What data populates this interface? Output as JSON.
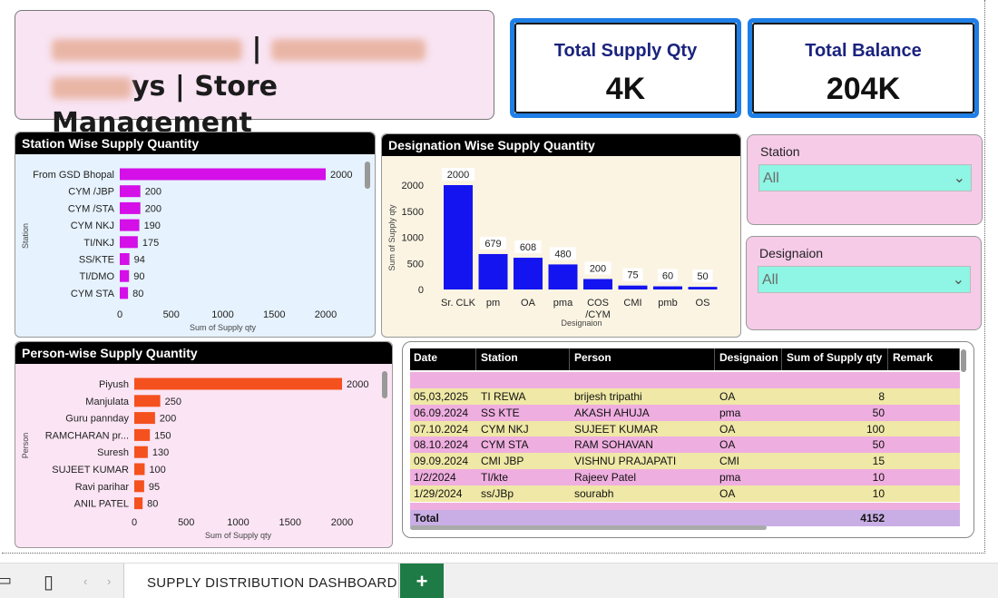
{
  "title": {
    "line1_visible": "|",
    "line2_visible": "ys | Store Management"
  },
  "kpis": {
    "supply": {
      "label": "Total Supply Qty",
      "value": "4K"
    },
    "balance": {
      "label": "Total Balance",
      "value": "204K"
    }
  },
  "colors": {
    "station_bar": "#d40fe8",
    "designation_bar": "#1414f0",
    "person_bar": "#f4511e",
    "kpi_border": "#1f7fe6",
    "slicer_bg": "#f6cbe8",
    "slicer_box": "#8ff5e4"
  },
  "station_chart": {
    "title": "Station Wise Supply Quantity",
    "xlabel": "Sum of Supply qty",
    "ylabel": "Station",
    "ticks": [
      "0",
      "500",
      "1000",
      "1500",
      "2000"
    ]
  },
  "designation_chart": {
    "title": "Designation Wise Supply Quantity",
    "xlabel": "Designaion",
    "ylabel": "Sum of Supply qty",
    "ticks": [
      "0",
      "500",
      "1000",
      "1500",
      "2000"
    ]
  },
  "person_chart": {
    "title": "Person-wise Supply Quantity",
    "xlabel": "Sum of Supply qty",
    "ylabel": "Person",
    "ticks": [
      "0",
      "500",
      "1000",
      "1500",
      "2000"
    ]
  },
  "chart_data": [
    {
      "type": "bar",
      "orientation": "horizontal",
      "title": "Station Wise Supply Quantity",
      "xlabel": "Sum of Supply qty",
      "ylabel": "Station",
      "xlim": [
        0,
        2000
      ],
      "categories": [
        "From GSD Bhopal",
        "CYM /JBP",
        "CYM /STA",
        "CYM NKJ",
        "TI/NKJ",
        "SS/KTE",
        "TI/DMO",
        "CYM STA"
      ],
      "values": [
        2000,
        200,
        200,
        190,
        175,
        94,
        90,
        80
      ],
      "data_labels": [
        "2000",
        "200",
        "200",
        "190",
        "175",
        "94",
        "90",
        "80"
      ]
    },
    {
      "type": "bar",
      "orientation": "vertical",
      "title": "Designation Wise Supply Quantity",
      "xlabel": "Designaion",
      "ylabel": "Sum of Supply qty",
      "ylim": [
        0,
        2000
      ],
      "categories": [
        "Sr. CLK",
        "pm",
        "OA",
        "pma",
        "COS /CYM",
        "CMI",
        "pmb",
        "OS"
      ],
      "category_lines": [
        [
          "Sr. CLK"
        ],
        [
          "pm"
        ],
        [
          "OA"
        ],
        [
          "pma"
        ],
        [
          "COS",
          "/CYM"
        ],
        [
          "CMI"
        ],
        [
          "pmb"
        ],
        [
          "OS"
        ]
      ],
      "values": [
        2000,
        679,
        608,
        480,
        200,
        75,
        60,
        50
      ],
      "data_labels": [
        "2000",
        "679",
        "608",
        "480",
        "200",
        "75",
        "60",
        "50"
      ]
    },
    {
      "type": "bar",
      "orientation": "horizontal",
      "title": "Person-wise Supply Quantity",
      "xlabel": "Sum of Supply qty",
      "ylabel": "Person",
      "xlim": [
        0,
        2000
      ],
      "categories": [
        "Piyush",
        "Manjulata",
        "Guru pannday",
        "RAMCHARAN pr...",
        "Suresh",
        "SUJEET KUMAR",
        "Ravi parihar",
        "ANIL PATEL"
      ],
      "values": [
        2000,
        250,
        200,
        150,
        130,
        100,
        95,
        80
      ],
      "data_labels": [
        "2000",
        "250",
        "200",
        "150",
        "130",
        "100",
        "95",
        "80"
      ]
    }
  ],
  "slicers": {
    "station": {
      "label": "Station",
      "value": "All"
    },
    "designation": {
      "label": "Designaion",
      "value": "All"
    }
  },
  "table": {
    "columns": [
      "Date",
      "Station",
      "Person",
      "Designaion",
      "Sum of Supply qty",
      "Remark"
    ],
    "rows": [
      {
        "date": "05,03,2025",
        "station": "TI REWA",
        "person": "brijesh tripathi",
        "designation": "OA",
        "qty": "8",
        "remark": ""
      },
      {
        "date": "06.09.2024",
        "station": "SS KTE",
        "person": "AKASH AHUJA",
        "designation": "pma",
        "qty": "50",
        "remark": ""
      },
      {
        "date": "07.10.2024",
        "station": "CYM NKJ",
        "person": "SUJEET KUMAR",
        "designation": "OA",
        "qty": "100",
        "remark": ""
      },
      {
        "date": "08.10.2024",
        "station": "CYM STA",
        "person": "RAM SOHAVAN",
        "designation": "OA",
        "qty": "50",
        "remark": ""
      },
      {
        "date": "09.09.2024",
        "station": "CMI JBP",
        "person": "VISHNU PRAJAPATI",
        "designation": "CMI",
        "qty": "15",
        "remark": ""
      },
      {
        "date": "1/2/2024",
        "station": "TI/kte",
        "person": "Rajeev Patel",
        "designation": "pma",
        "qty": "10",
        "remark": ""
      },
      {
        "date": "1/29/2024",
        "station": "ss/JBp",
        "person": "sourabh",
        "designation": "OA",
        "qty": "10",
        "remark": ""
      }
    ],
    "total_label": "Total",
    "total_value": "4152"
  },
  "tabs": {
    "active_label": "SUPPLY DISTRIBUTION DASHBOARD",
    "add_label": "+"
  }
}
